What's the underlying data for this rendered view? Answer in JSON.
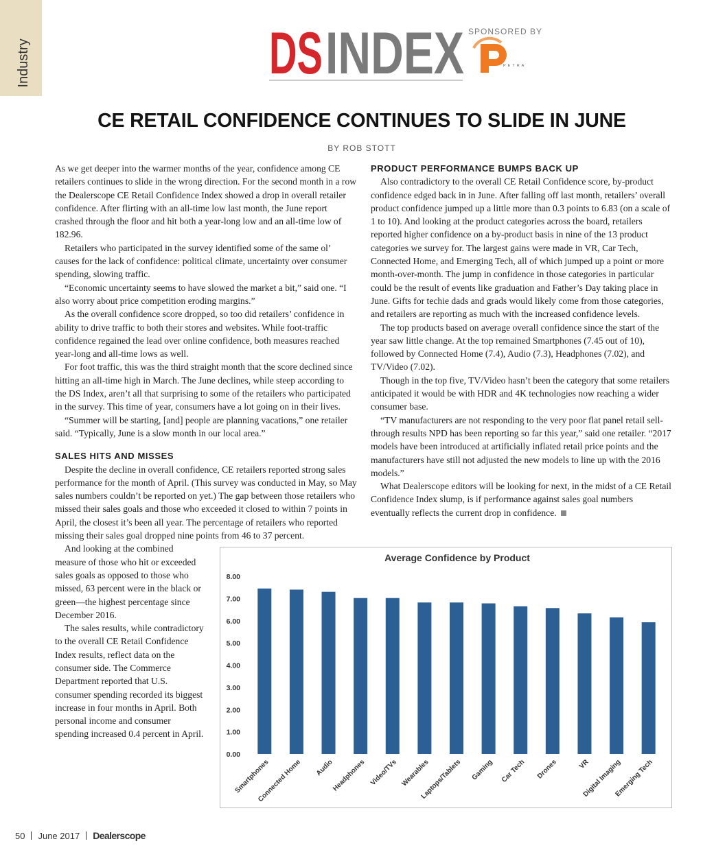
{
  "header": {
    "section": "Industry",
    "logo_ds": "DS",
    "logo_index": "INDEX",
    "sponsored_by": "SPONSORED BY",
    "sponsor": "PETRA"
  },
  "article": {
    "title": "CE RETAIL CONFIDENCE CONTINUES TO SLIDE IN JUNE",
    "byline": "BY ROB STOTT",
    "left_column": [
      "As we get deeper into the warmer months of the year, confidence among CE retailers continues to slide in the wrong direction. For the second month in a row the Dealerscope CE Retail Confidence Index showed a drop in overall retailer confidence. After flirting with an all-time low last month, the June report crashed through the floor and hit both a year-long low and an all-time low of 182.96.",
      "Retailers who participated in the survey identified some of the same ol’ causes for the lack of confidence: political climate, uncertainty over consumer spending, slowing traffic.",
      "“Economic uncertainty seems to have slowed the market a bit,” said one. “I also worry about price competition eroding margins.”",
      "As the overall confidence score dropped, so too did retailers’ confidence in ability to drive traffic to both their stores and websites. While foot-traffic confidence regained the lead over online confidence, both measures reached year-long and all-time lows as well.",
      "For foot traffic, this was the third straight month that the score declined since hitting an all-time high in March. The June declines, while steep according to the DS Index, aren’t all that surprising to some of the retailers who participated in the survey. This time of year, consumers have a lot going on in their lives.",
      "“Summer will be starting, [and] people are planning vacations,” one retailer said. “Typically, June is a slow month in our local area.”"
    ],
    "sales_heading": "SALES HITS AND MISSES",
    "sales_paragraphs": [
      "Despite the decline in overall confidence, CE retailers reported strong sales performance for the month of April. (This survey was conducted in May, so May sales numbers couldn’t be reported on yet.) The gap between those retailers who missed their sales goals and those who exceeded it closed to within 7 points in April, the closest it’s been all year. The percentage of retailers who reported missing their sales goal dropped nine points from 46 to 37 percent.",
      "And looking at the combined measure of those who hit or exceeded sales goals as opposed to those who missed, 63 percent were in the black or green—the highest percentage since December 2016.",
      "The sales results, while contradictory to the overall CE Retail Confidence Index results, reflect data on the consumer side. The Commerce Department reported that U.S. consumer spending recorded its biggest increase in four months in April. Both personal income and consumer spending increased 0.4 percent in April."
    ],
    "product_heading": "PRODUCT PERFORMANCE BUMPS BACK UP",
    "product_paragraphs": [
      "Also contradictory to the overall CE Retail Confidence score, by-product confidence edged back in in June. After falling off last month, retailers’ overall product confidence jumped up a little more than 0.3 points to 6.83 (on a scale of 1 to 10). And looking at the product categories across the board, retailers reported higher confidence on a by-product basis in nine of the 13 product categories we survey for. The largest gains were made in VR, Car Tech, Connected Home, and Emerging Tech, all of which jumped up a point or more month-over-month. The jump in confidence in those categories in particular could be the result of events like graduation and Father’s Day taking place in June. Gifts for techie dads and grads would likely come from those categories, and retailers are reporting as much with the increased confidence levels.",
      "The top products based on average overall confidence since the start of the year saw little change. At the top remained Smartphones (7.45 out of 10), followed by Connected Home (7.4), Audio (7.3), Headphones (7.02), and TV/Video (7.02).",
      "Though in the top five, TV/Video hasn’t been the category that some retailers anticipated it would be with HDR and 4K technologies now reaching a wider consumer base.",
      "“TV manufacturers are not responding to the very poor flat panel retail sell-through results NPD has been reporting so far this year,” said one retailer. “2017 models have been introduced at artificially inflated retail price points and the manufacturers have still not adjusted the new models to line up with the 2016 models.”",
      "What Dealerscope editors will be looking for next, in the midst of a CE Retail Confidence Index slump, is if performance against sales goal numbers eventually reflects the current drop in confidence."
    ]
  },
  "chart_data": {
    "type": "bar",
    "title": "Average Confidence by Product",
    "categories": [
      "Smartphones",
      "Connected Home",
      "Audio",
      "Headphones",
      "Video/TVs",
      "Wearables",
      "Laptops/Tablets",
      "Gaming",
      "Car Tech",
      "Drones",
      "VR",
      "Digital Imaging",
      "Emerging Tech"
    ],
    "values": [
      7.45,
      7.4,
      7.3,
      7.02,
      7.02,
      6.82,
      6.82,
      6.78,
      6.65,
      6.57,
      6.33,
      6.15,
      5.93
    ],
    "color": "#2c5f93",
    "ylim": [
      0,
      8
    ],
    "yticks": [
      {
        "value": 0,
        "label": "0.00"
      },
      {
        "value": 1,
        "label": "1.00"
      },
      {
        "value": 2,
        "label": "2.00"
      },
      {
        "value": 3,
        "label": "3.00"
      },
      {
        "value": 4,
        "label": "4.00"
      },
      {
        "value": 5,
        "label": "5.00"
      },
      {
        "value": 6,
        "label": "6.00"
      },
      {
        "value": 7,
        "label": "7.00"
      },
      {
        "value": 8,
        "label": "8.00"
      }
    ],
    "grid": false
  },
  "footer": {
    "page": "50",
    "issue": "June 2017",
    "publication": "Dealerscope"
  }
}
